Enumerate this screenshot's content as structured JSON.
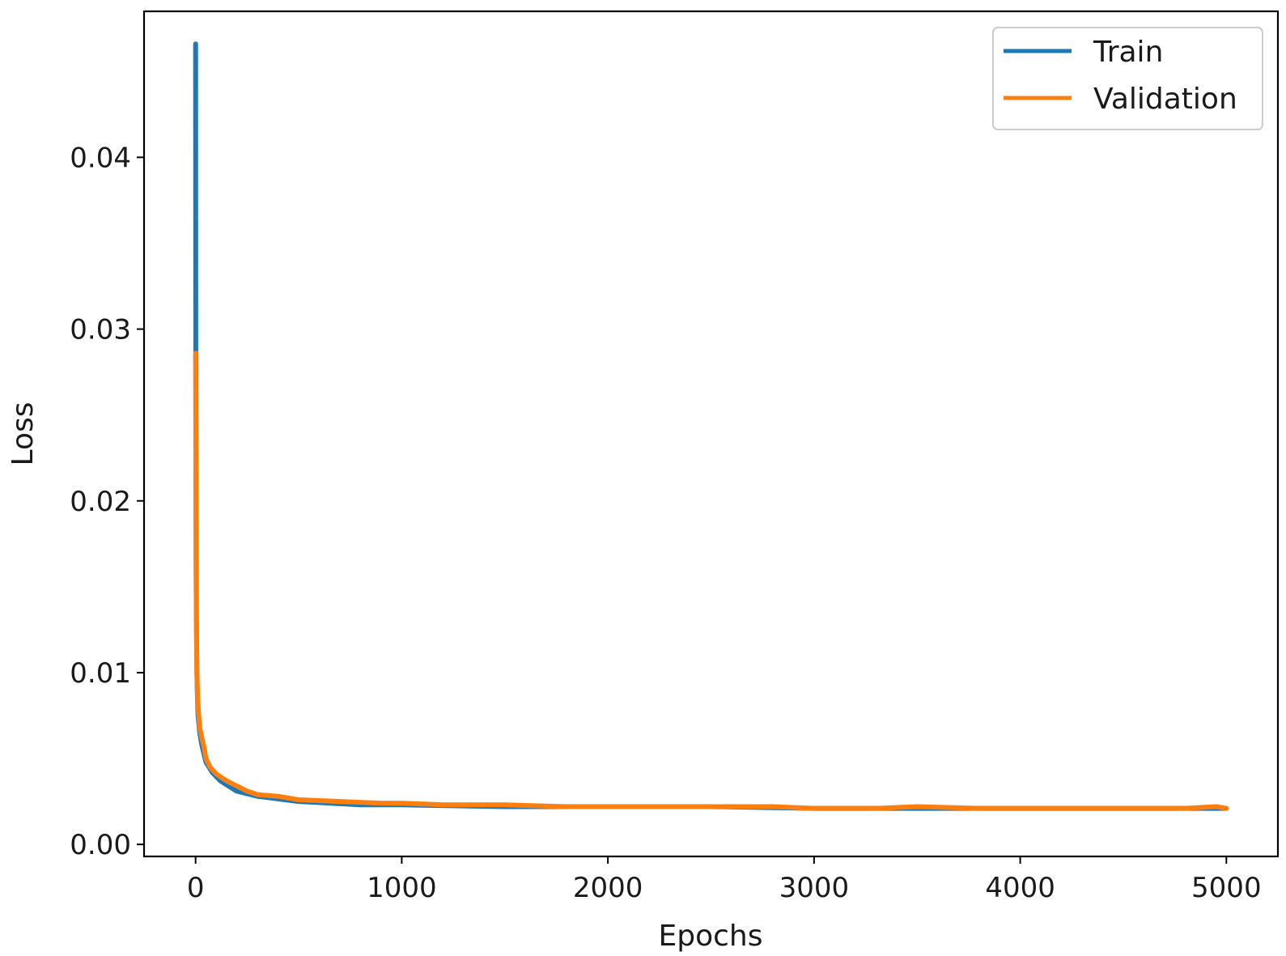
{
  "chart_data": {
    "type": "line",
    "title": "",
    "xlabel": "Epochs",
    "ylabel": "Loss",
    "xlim": [
      -250,
      5250
    ],
    "ylim": [
      -0.0007,
      0.0485
    ],
    "x_ticks": [
      0,
      1000,
      2000,
      3000,
      4000,
      5000
    ],
    "x_tick_labels": [
      "0",
      "1000",
      "2000",
      "3000",
      "4000",
      "5000"
    ],
    "y_ticks": [
      0.0,
      0.01,
      0.02,
      0.03,
      0.04
    ],
    "y_tick_labels": [
      "0.00",
      "0.01",
      "0.02",
      "0.03",
      "0.04"
    ],
    "grid": false,
    "legend_position": "top-right",
    "series": [
      {
        "name": "Train",
        "color": "#1f77b4",
        "x": [
          0,
          1,
          2,
          3,
          5,
          8,
          12,
          20,
          30,
          50,
          80,
          120,
          200,
          300,
          500,
          800,
          1000,
          1500,
          2000,
          2500,
          3000,
          3500,
          4000,
          4500,
          5000
        ],
        "values": [
          0.0466,
          0.0286,
          0.02,
          0.015,
          0.0115,
          0.009,
          0.0075,
          0.0065,
          0.0058,
          0.0048,
          0.0042,
          0.0037,
          0.0031,
          0.0028,
          0.0025,
          0.0023,
          0.0023,
          0.0022,
          0.0022,
          0.0022,
          0.0021,
          0.0021,
          0.0021,
          0.0021,
          0.0021
        ]
      },
      {
        "name": "Validation",
        "color": "#ff7f0e",
        "x": [
          0,
          2,
          4,
          6,
          10,
          15,
          20,
          30,
          40,
          50,
          70,
          100,
          150,
          200,
          250,
          300,
          400,
          500,
          700,
          900,
          1000,
          1200,
          1500,
          1800,
          2000,
          2300,
          2500,
          2800,
          3000,
          3300,
          3500,
          3800,
          4000,
          4300,
          4500,
          4800,
          4950,
          5000
        ],
        "values": [
          0.0286,
          0.018,
          0.013,
          0.01,
          0.0085,
          0.0075,
          0.0068,
          0.0062,
          0.0057,
          0.005,
          0.0045,
          0.0041,
          0.0037,
          0.0034,
          0.0031,
          0.0029,
          0.0028,
          0.0026,
          0.0025,
          0.0024,
          0.0024,
          0.0023,
          0.0023,
          0.0022,
          0.0022,
          0.0022,
          0.0022,
          0.0022,
          0.0021,
          0.0021,
          0.0022,
          0.0021,
          0.0021,
          0.0021,
          0.0021,
          0.0021,
          0.0022,
          0.0021
        ]
      }
    ]
  }
}
